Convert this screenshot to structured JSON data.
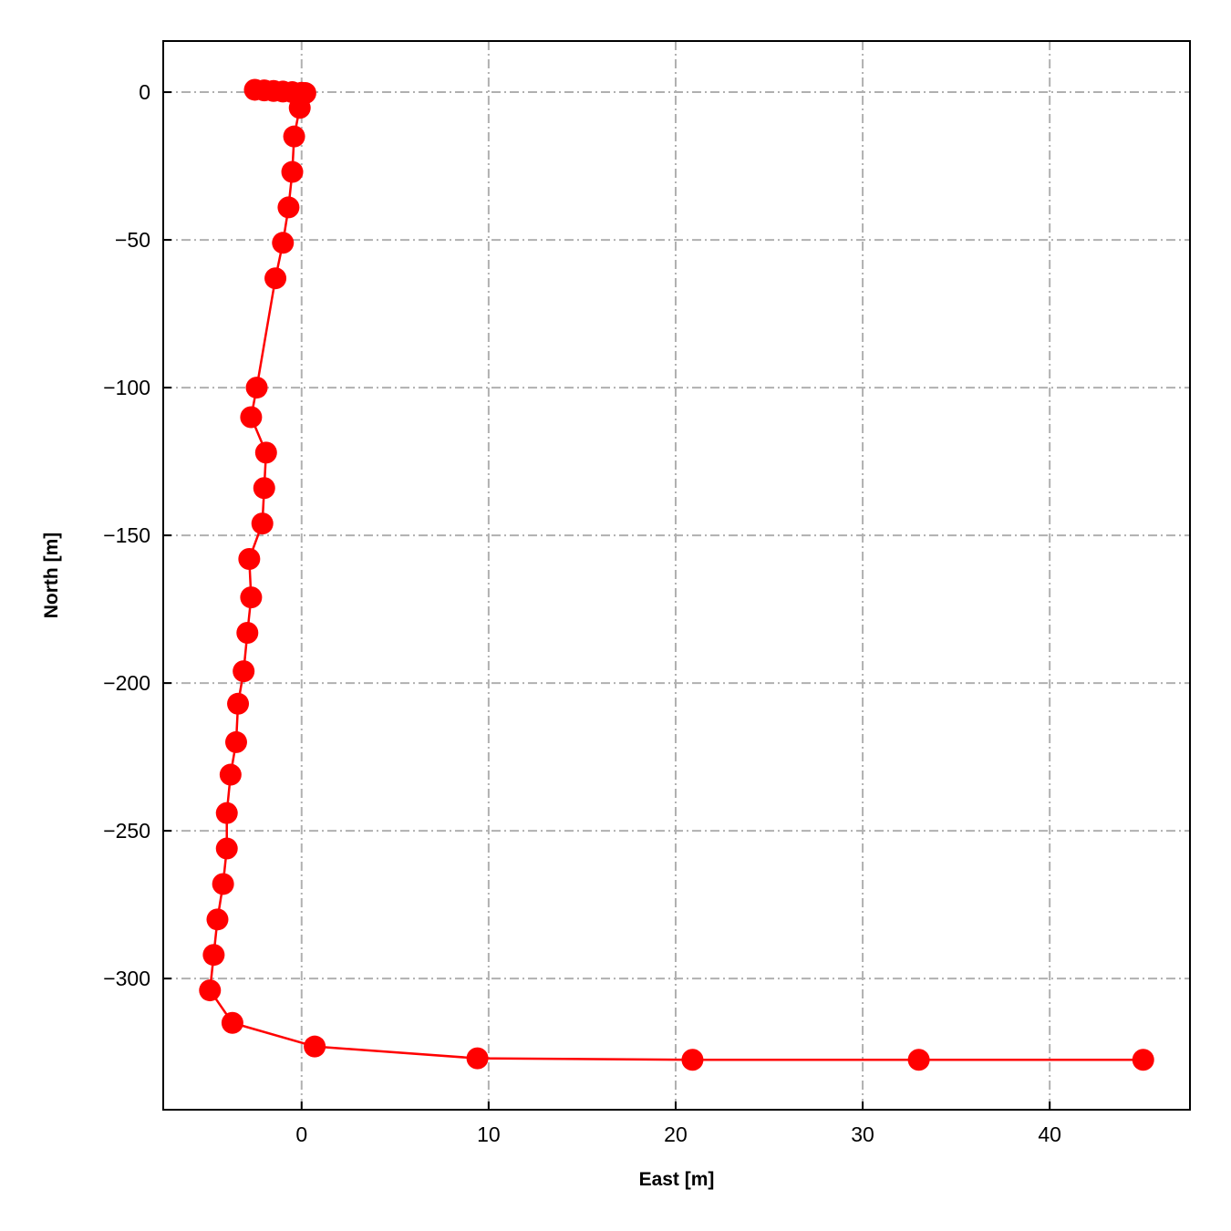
{
  "chart_data": {
    "type": "line",
    "title": "",
    "xlabel": "East [m]",
    "ylabel": "North [m]",
    "xlim": [
      -7.4,
      47.5
    ],
    "ylim": [
      -344.4,
      17.3
    ],
    "xticks": [
      0,
      10,
      20,
      30,
      40
    ],
    "yticks": [
      0,
      -50,
      -100,
      -150,
      -200,
      -250,
      -300
    ],
    "xtick_labels": [
      "0",
      "10",
      "20",
      "30",
      "40"
    ],
    "ytick_labels": [
      "0",
      "−50",
      "−100",
      "−150",
      "−200",
      "−250",
      "−300"
    ],
    "grid": true,
    "grid_style": "dashdot",
    "grid_color": "#b0b0b0",
    "series": [
      {
        "color": "#ff0000",
        "marker": "circle",
        "x": [
          -2.5,
          -2.0,
          -1.5,
          -1.0,
          -0.5,
          0.0,
          0.2,
          -0.1,
          -0.4,
          -0.5,
          -0.7,
          -1.0,
          -1.4,
          -2.4,
          -2.7,
          -1.9,
          -2.0,
          -2.1,
          -2.8,
          -2.7,
          -2.9,
          -3.1,
          -3.4,
          -3.5,
          -3.8,
          -4.0,
          -4.0,
          -4.2,
          -4.5,
          -4.7,
          -4.9,
          -3.7,
          0.7,
          9.4,
          20.9,
          33.0,
          45.0
        ],
        "y": [
          0.8,
          0.6,
          0.4,
          0.2,
          0.0,
          -0.2,
          -0.3,
          -5.3,
          -15,
          -27,
          -39,
          -51,
          -63,
          -100,
          -110,
          -122,
          -134,
          -146,
          -158,
          -171,
          -183,
          -196,
          -207,
          -220,
          -231,
          -244,
          -256,
          -268,
          -280,
          -292,
          -304,
          -315,
          -323,
          -327,
          -327.5,
          -327.5,
          -327.5
        ]
      }
    ]
  }
}
